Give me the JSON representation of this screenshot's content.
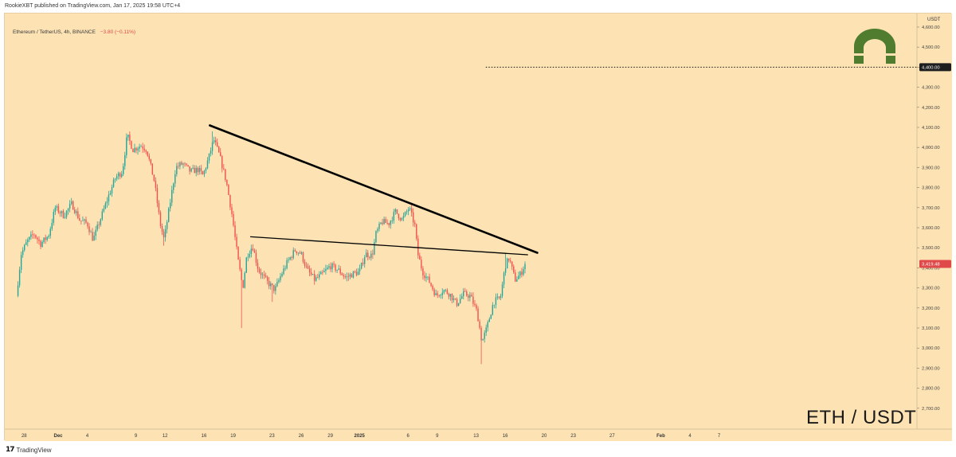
{
  "header": {
    "publish_text": "RookieXBT published on TradingView.com, Jan 17, 2025 19:58 UTC+4"
  },
  "symbol": {
    "title": "Ethereum / TetherUS, 4h, BINANCE",
    "change": "−3.80 (−0.11%)"
  },
  "watermark": {
    "pair": "ETH / USDT"
  },
  "footer": {
    "brand": "TradingView",
    "brand_icon": "tradingview-logo-icon"
  },
  "logo_badge": {
    "icon": "magnet-arch-icon",
    "color": "#4f7c2f"
  },
  "colors": {
    "background": "#fde3b4",
    "up": "#26a69a",
    "down": "#ef5350",
    "trendline": "#000000",
    "price_label_bg": "#e0494a",
    "level_label_bg": "#1e1e1e"
  },
  "chart_data": {
    "type": "candlestick",
    "title": "Ethereum / TetherUS, 4h, BINANCE",
    "axis_unit": "USDT",
    "ylim": [
      2600,
      4700
    ],
    "y_ticks": [
      "4,600.00",
      "4,500.00",
      "4,400.00",
      "4,300.00",
      "4,200.00",
      "4,100.00",
      "4,000.00",
      "3,900.00",
      "3,800.00",
      "3,700.00",
      "3,600.00",
      "3,500.00",
      "3,400.00",
      "3,300.00",
      "3,200.00",
      "3,100.00",
      "3,000.00",
      "2,900.00",
      "2,800.00",
      "2,700.00"
    ],
    "y_tick_values": [
      4600,
      4500,
      4400,
      4300,
      4200,
      4100,
      4000,
      3900,
      3800,
      3700,
      3600,
      3500,
      3400,
      3300,
      3200,
      3100,
      3000,
      2900,
      2800,
      2700
    ],
    "x_ticks": [
      "28",
      "Dec",
      "4",
      "9",
      "12",
      "16",
      "19",
      "23",
      "26",
      "29",
      "2025",
      "6",
      "9",
      "13",
      "16",
      "20",
      "23",
      "27",
      "Feb",
      "4",
      "7"
    ],
    "x_tick_days": [
      -3.5,
      0,
      3,
      8,
      11,
      15,
      18,
      22,
      25,
      28,
      31,
      36,
      39,
      43,
      46,
      50,
      53,
      57,
      62,
      65,
      68
    ],
    "last_price": {
      "value": 3419.48,
      "label": "3,419.48"
    },
    "level_line": {
      "value": 4400,
      "label": "4,400.00",
      "from_day": 44,
      "style": "dotted"
    },
    "trendlines": [
      {
        "name": "",
        "from": {
          "day": 15.6,
          "price": 4110
        },
        "to": {
          "day": 49.3,
          "price": 3475
        },
        "weight": "thick"
      },
      {
        "name": "",
        "from": {
          "day": 19.8,
          "price": 3555
        },
        "to": {
          "day": 48.3,
          "price": 3465
        },
        "weight": "thin"
      }
    ],
    "anchors": [
      {
        "day": -4.3,
        "price": 3260
      },
      {
        "day": -3.8,
        "price": 3470
      },
      {
        "day": -3.2,
        "price": 3530
      },
      {
        "day": -2.5,
        "price": 3570
      },
      {
        "day": -1.8,
        "price": 3520
      },
      {
        "day": -1.0,
        "price": 3560
      },
      {
        "day": -0.3,
        "price": 3700
      },
      {
        "day": 0.6,
        "price": 3660
      },
      {
        "day": 1.4,
        "price": 3720
      },
      {
        "day": 2.2,
        "price": 3640
      },
      {
        "day": 3.0,
        "price": 3620
      },
      {
        "day": 3.6,
        "price": 3540
      },
      {
        "day": 4.4,
        "price": 3650
      },
      {
        "day": 5.2,
        "price": 3760
      },
      {
        "day": 5.9,
        "price": 3850
      },
      {
        "day": 6.6,
        "price": 3880
      },
      {
        "day": 7.1,
        "price": 4060
      },
      {
        "day": 7.7,
        "price": 3990
      },
      {
        "day": 8.5,
        "price": 4010
      },
      {
        "day": 9.1,
        "price": 3990
      },
      {
        "day": 9.9,
        "price": 3830
      },
      {
        "day": 10.5,
        "price": 3620
      },
      {
        "day": 10.9,
        "price": 3540
      },
      {
        "day": 11.5,
        "price": 3720
      },
      {
        "day": 12.1,
        "price": 3900
      },
      {
        "day": 12.8,
        "price": 3920
      },
      {
        "day": 13.6,
        "price": 3880
      },
      {
        "day": 14.4,
        "price": 3890
      },
      {
        "day": 14.9,
        "price": 3860
      },
      {
        "day": 15.5,
        "price": 3950
      },
      {
        "day": 16.0,
        "price": 4040
      },
      {
        "day": 16.6,
        "price": 3960
      },
      {
        "day": 17.3,
        "price": 3830
      },
      {
        "day": 17.9,
        "price": 3660
      },
      {
        "day": 18.5,
        "price": 3440
      },
      {
        "day": 19.0,
        "price": 3300
      },
      {
        "day": 19.4,
        "price": 3460
      },
      {
        "day": 20.0,
        "price": 3510
      },
      {
        "day": 20.6,
        "price": 3390
      },
      {
        "day": 21.5,
        "price": 3330
      },
      {
        "day": 22.3,
        "price": 3290
      },
      {
        "day": 22.9,
        "price": 3360
      },
      {
        "day": 23.6,
        "price": 3430
      },
      {
        "day": 24.4,
        "price": 3490
      },
      {
        "day": 25.0,
        "price": 3470
      },
      {
        "day": 25.6,
        "price": 3390
      },
      {
        "day": 26.4,
        "price": 3340
      },
      {
        "day": 27.2,
        "price": 3370
      },
      {
        "day": 28.0,
        "price": 3410
      },
      {
        "day": 28.8,
        "price": 3390
      },
      {
        "day": 29.6,
        "price": 3350
      },
      {
        "day": 30.3,
        "price": 3370
      },
      {
        "day": 31.0,
        "price": 3380
      },
      {
        "day": 31.6,
        "price": 3470
      },
      {
        "day": 32.3,
        "price": 3460
      },
      {
        "day": 32.7,
        "price": 3570
      },
      {
        "day": 33.3,
        "price": 3630
      },
      {
        "day": 34.0,
        "price": 3620
      },
      {
        "day": 34.7,
        "price": 3680
      },
      {
        "day": 35.4,
        "price": 3640
      },
      {
        "day": 36.1,
        "price": 3700
      },
      {
        "day": 36.7,
        "price": 3610
      },
      {
        "day": 37.0,
        "price": 3470
      },
      {
        "day": 37.5,
        "price": 3380
      },
      {
        "day": 38.2,
        "price": 3330
      },
      {
        "day": 38.9,
        "price": 3260
      },
      {
        "day": 39.6,
        "price": 3290
      },
      {
        "day": 40.3,
        "price": 3270
      },
      {
        "day": 41.0,
        "price": 3220
      },
      {
        "day": 41.7,
        "price": 3270
      },
      {
        "day": 42.4,
        "price": 3260
      },
      {
        "day": 43.1,
        "price": 3180
      },
      {
        "day": 43.6,
        "price": 3030
      },
      {
        "day": 44.1,
        "price": 3100
      },
      {
        "day": 44.8,
        "price": 3230
      },
      {
        "day": 45.5,
        "price": 3250
      },
      {
        "day": 46.0,
        "price": 3410
      },
      {
        "day": 46.4,
        "price": 3450
      },
      {
        "day": 47.0,
        "price": 3340
      },
      {
        "day": 47.6,
        "price": 3370
      },
      {
        "day": 48.1,
        "price": 3430
      }
    ],
    "spikes": [
      {
        "day": 18.8,
        "price": 3100
      },
      {
        "day": 7.1,
        "price": 4070
      },
      {
        "day": 15.8,
        "price": 4080
      },
      {
        "day": 36.3,
        "price": 3720
      },
      {
        "day": 43.6,
        "price": 2920
      },
      {
        "day": 46.1,
        "price": 3470
      },
      {
        "day": 10.9,
        "price": 3510
      },
      {
        "day": 22.1,
        "price": 3230
      }
    ]
  }
}
